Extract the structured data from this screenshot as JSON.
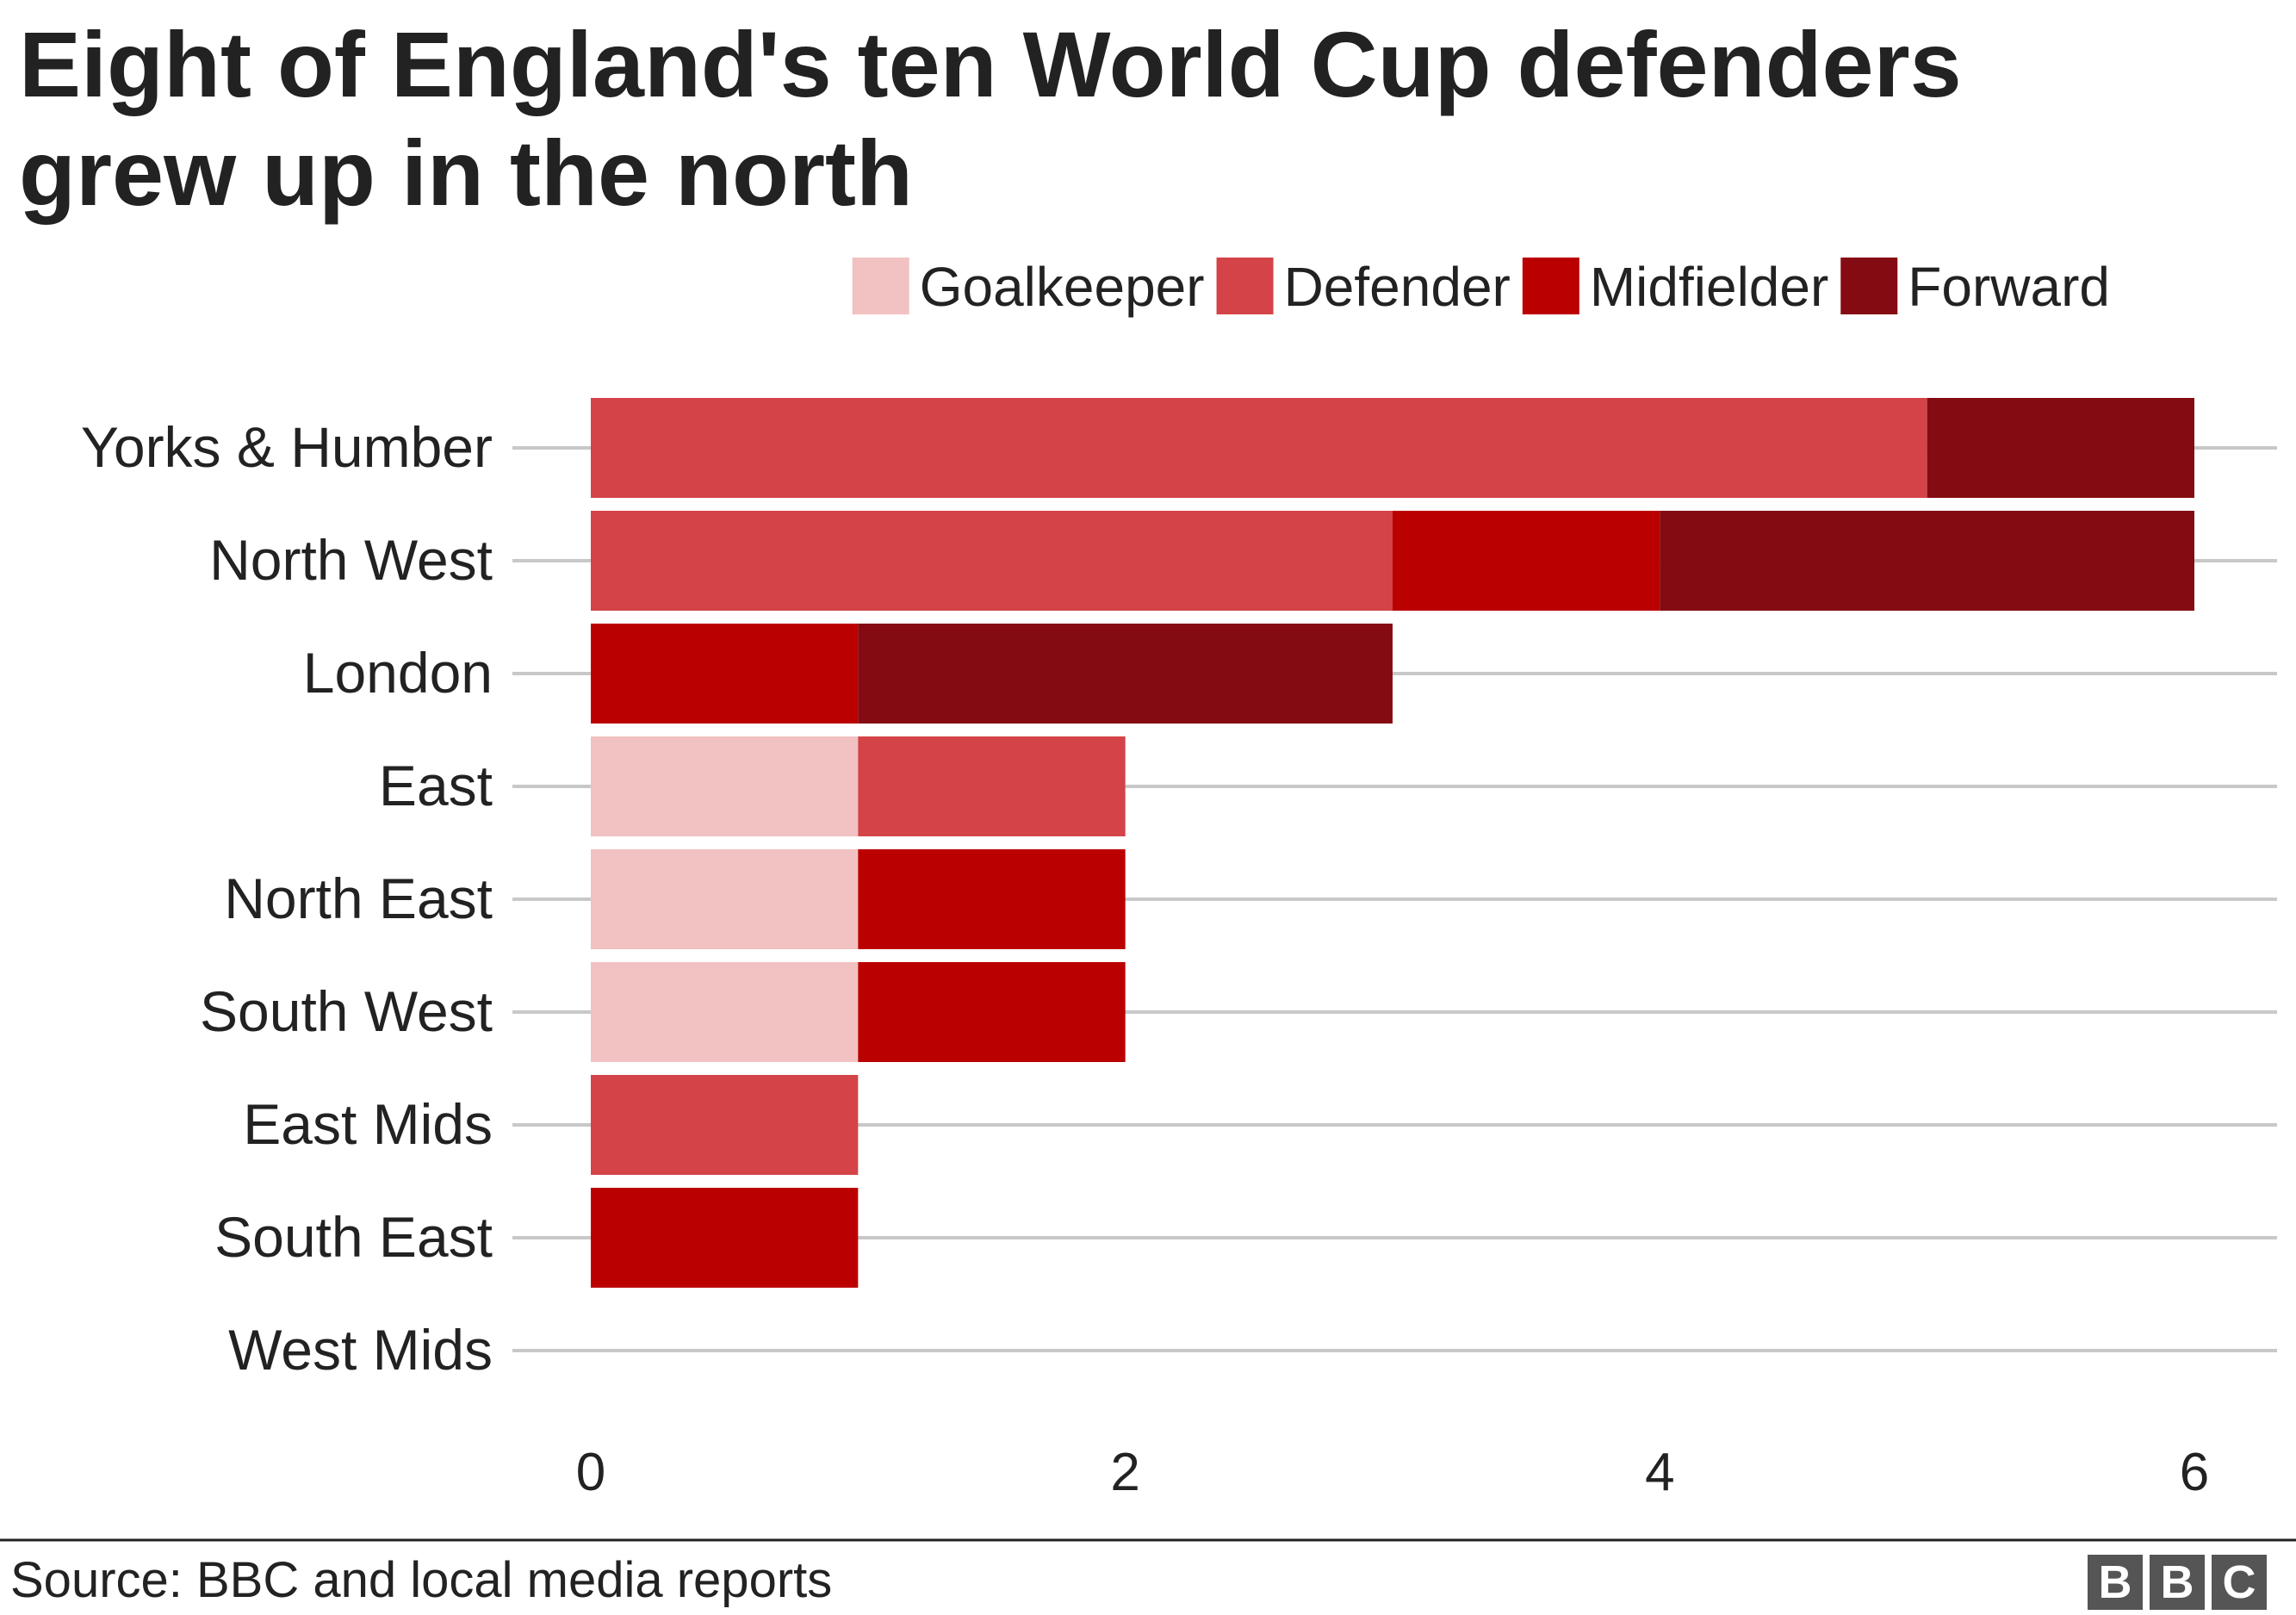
{
  "chart_data": {
    "type": "bar",
    "orientation": "horizontal",
    "stacked": true,
    "title_lines": [
      "Eight of England's ten World Cup defenders",
      "grew up in the north"
    ],
    "categories": [
      "Yorks & Humber",
      "North West",
      "London",
      "East",
      "North East",
      "South West",
      "East Mids",
      "South East",
      "West Mids"
    ],
    "series": [
      {
        "name": "Goalkeeper",
        "color": "#f2c1c1",
        "values": [
          0,
          0,
          0,
          1,
          1,
          1,
          0,
          0,
          0
        ]
      },
      {
        "name": "Defender",
        "color": "#d44347",
        "values": [
          5,
          3,
          0,
          1,
          0,
          0,
          1,
          0,
          0
        ]
      },
      {
        "name": "Midfielder",
        "color": "#bb0000",
        "values": [
          0,
          1,
          1,
          0,
          1,
          1,
          0,
          1,
          0
        ]
      },
      {
        "name": "Forward",
        "color": "#850b13",
        "values": [
          1,
          2,
          2,
          0,
          0,
          0,
          0,
          0,
          0
        ]
      }
    ],
    "xlim": [
      0,
      6
    ],
    "xticks": [
      "0",
      "2",
      "4",
      "6"
    ],
    "legend_position": "top-right",
    "grid": "horizontal lines per category"
  },
  "footer": {
    "source": "Source: BBC and local media reports",
    "logo_letters": [
      "B",
      "B",
      "C"
    ]
  }
}
